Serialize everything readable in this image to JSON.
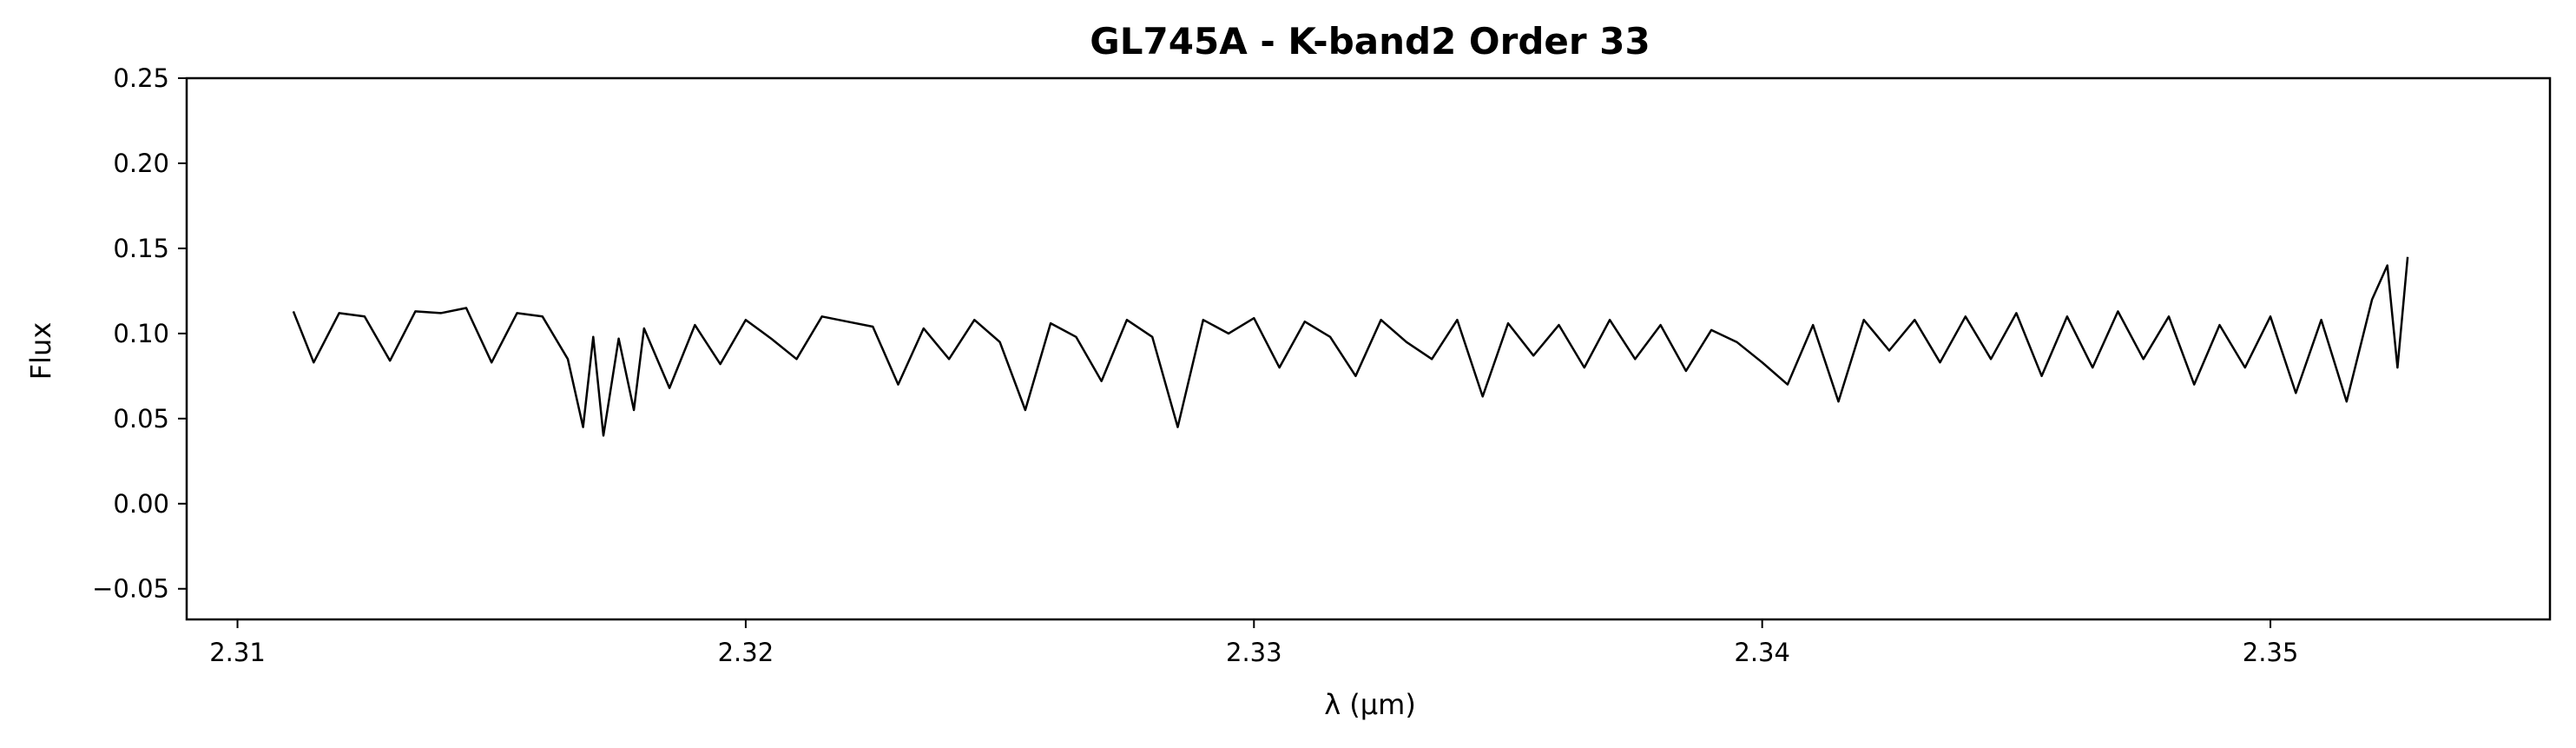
{
  "chart_data": {
    "type": "line",
    "title": "GL745A - K-band2 Order 33",
    "xlabel": "λ (μm)",
    "ylabel": "Flux",
    "xlim": [
      2.309,
      2.3555
    ],
    "ylim": [
      -0.068,
      0.25
    ],
    "x_ticks": [
      "2.31",
      "2.32",
      "2.33",
      "2.34",
      "2.35"
    ],
    "y_ticks": [
      "−0.05",
      "0.00",
      "0.05",
      "0.10",
      "0.15",
      "0.20",
      "0.25"
    ],
    "grid": false,
    "series": [
      {
        "color": "#000000",
        "x": [
          2.3111,
          2.3115,
          2.312,
          2.3125,
          2.313,
          2.3135,
          2.314,
          2.3145,
          2.315,
          2.3155,
          2.316,
          2.3165,
          2.3168,
          2.317,
          2.3172,
          2.3175,
          2.3178,
          2.318,
          2.3185,
          2.319,
          2.3195,
          2.32,
          2.3205,
          2.321,
          2.3215,
          2.322,
          2.3225,
          2.323,
          2.3235,
          2.324,
          2.3245,
          2.325,
          2.3255,
          2.326,
          2.3265,
          2.327,
          2.3275,
          2.328,
          2.3285,
          2.329,
          2.3295,
          2.33,
          2.3305,
          2.331,
          2.3315,
          2.332,
          2.3325,
          2.333,
          2.3335,
          2.334,
          2.3345,
          2.335,
          2.3355,
          2.336,
          2.3365,
          2.337,
          2.3375,
          2.338,
          2.3385,
          2.339,
          2.3395,
          2.34,
          2.3405,
          2.341,
          2.3415,
          2.342,
          2.3425,
          2.343,
          2.3435,
          2.344,
          2.3445,
          2.345,
          2.3455,
          2.346,
          2.3465,
          2.347,
          2.3475,
          2.348,
          2.3485,
          2.349,
          2.3495,
          2.35,
          2.3505,
          2.351,
          2.3515,
          2.352,
          2.3523,
          2.3525,
          2.3527
        ],
        "y": [
          0.113,
          0.083,
          0.112,
          0.11,
          0.084,
          0.113,
          0.112,
          0.115,
          0.083,
          0.112,
          0.11,
          0.085,
          0.045,
          0.098,
          0.04,
          0.097,
          0.055,
          0.103,
          0.068,
          0.105,
          0.082,
          0.108,
          0.097,
          0.085,
          0.11,
          0.107,
          0.104,
          0.07,
          0.103,
          0.085,
          0.108,
          0.095,
          0.055,
          0.106,
          0.098,
          0.072,
          0.108,
          0.098,
          0.045,
          0.108,
          0.1,
          0.109,
          0.08,
          0.107,
          0.098,
          0.075,
          0.108,
          0.095,
          0.085,
          0.108,
          0.063,
          0.106,
          0.087,
          0.105,
          0.08,
          0.108,
          0.085,
          0.105,
          0.078,
          0.102,
          0.095,
          0.083,
          0.07,
          0.105,
          0.06,
          0.108,
          0.09,
          0.108,
          0.083,
          0.11,
          0.085,
          0.112,
          0.075,
          0.11,
          0.08,
          0.113,
          0.085,
          0.11,
          0.07,
          0.105,
          0.08,
          0.11,
          0.065,
          0.108,
          0.06,
          0.12,
          0.14,
          0.08,
          0.145
        ]
      }
    ]
  }
}
